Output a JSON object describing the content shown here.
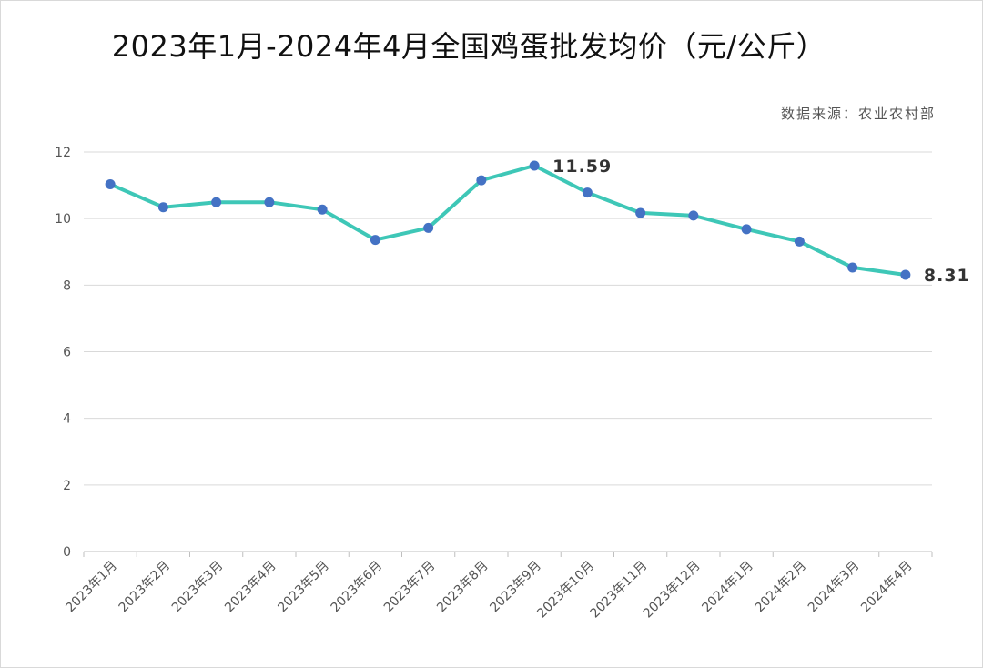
{
  "chart_data": {
    "type": "line",
    "title": "2023年1月-2024年4月全国鸡蛋批发均价（元/公斤）",
    "source": "数据来源：农业农村部",
    "xlabel": "",
    "ylabel": "",
    "ylim": [
      0,
      12
    ],
    "yticks": [
      0,
      2,
      4,
      6,
      8,
      10,
      12
    ],
    "grid": true,
    "categories": [
      "2023年1月",
      "2023年2月",
      "2023年3月",
      "2023年4月",
      "2023年5月",
      "2023年6月",
      "2023年7月",
      "2023年8月",
      "2023年9月",
      "2023年10月",
      "2023年11月",
      "2023年12月",
      "2024年1月",
      "2024年2月",
      "2024年3月",
      "2024年4月"
    ],
    "series": [
      {
        "name": "全国鸡蛋批发均价",
        "values": [
          11.03,
          10.34,
          10.49,
          10.49,
          10.27,
          9.36,
          9.72,
          11.15,
          11.59,
          10.78,
          10.17,
          10.09,
          9.68,
          9.31,
          8.53,
          8.31
        ]
      }
    ],
    "data_labels": [
      {
        "index": 8,
        "text": "11.59"
      },
      {
        "index": 15,
        "text": "8.31"
      }
    ],
    "colors": {
      "line": "#3ec7b7",
      "marker": "#4472c4",
      "grid": "#d9d9d9",
      "axis": "#bfbfbf"
    }
  }
}
